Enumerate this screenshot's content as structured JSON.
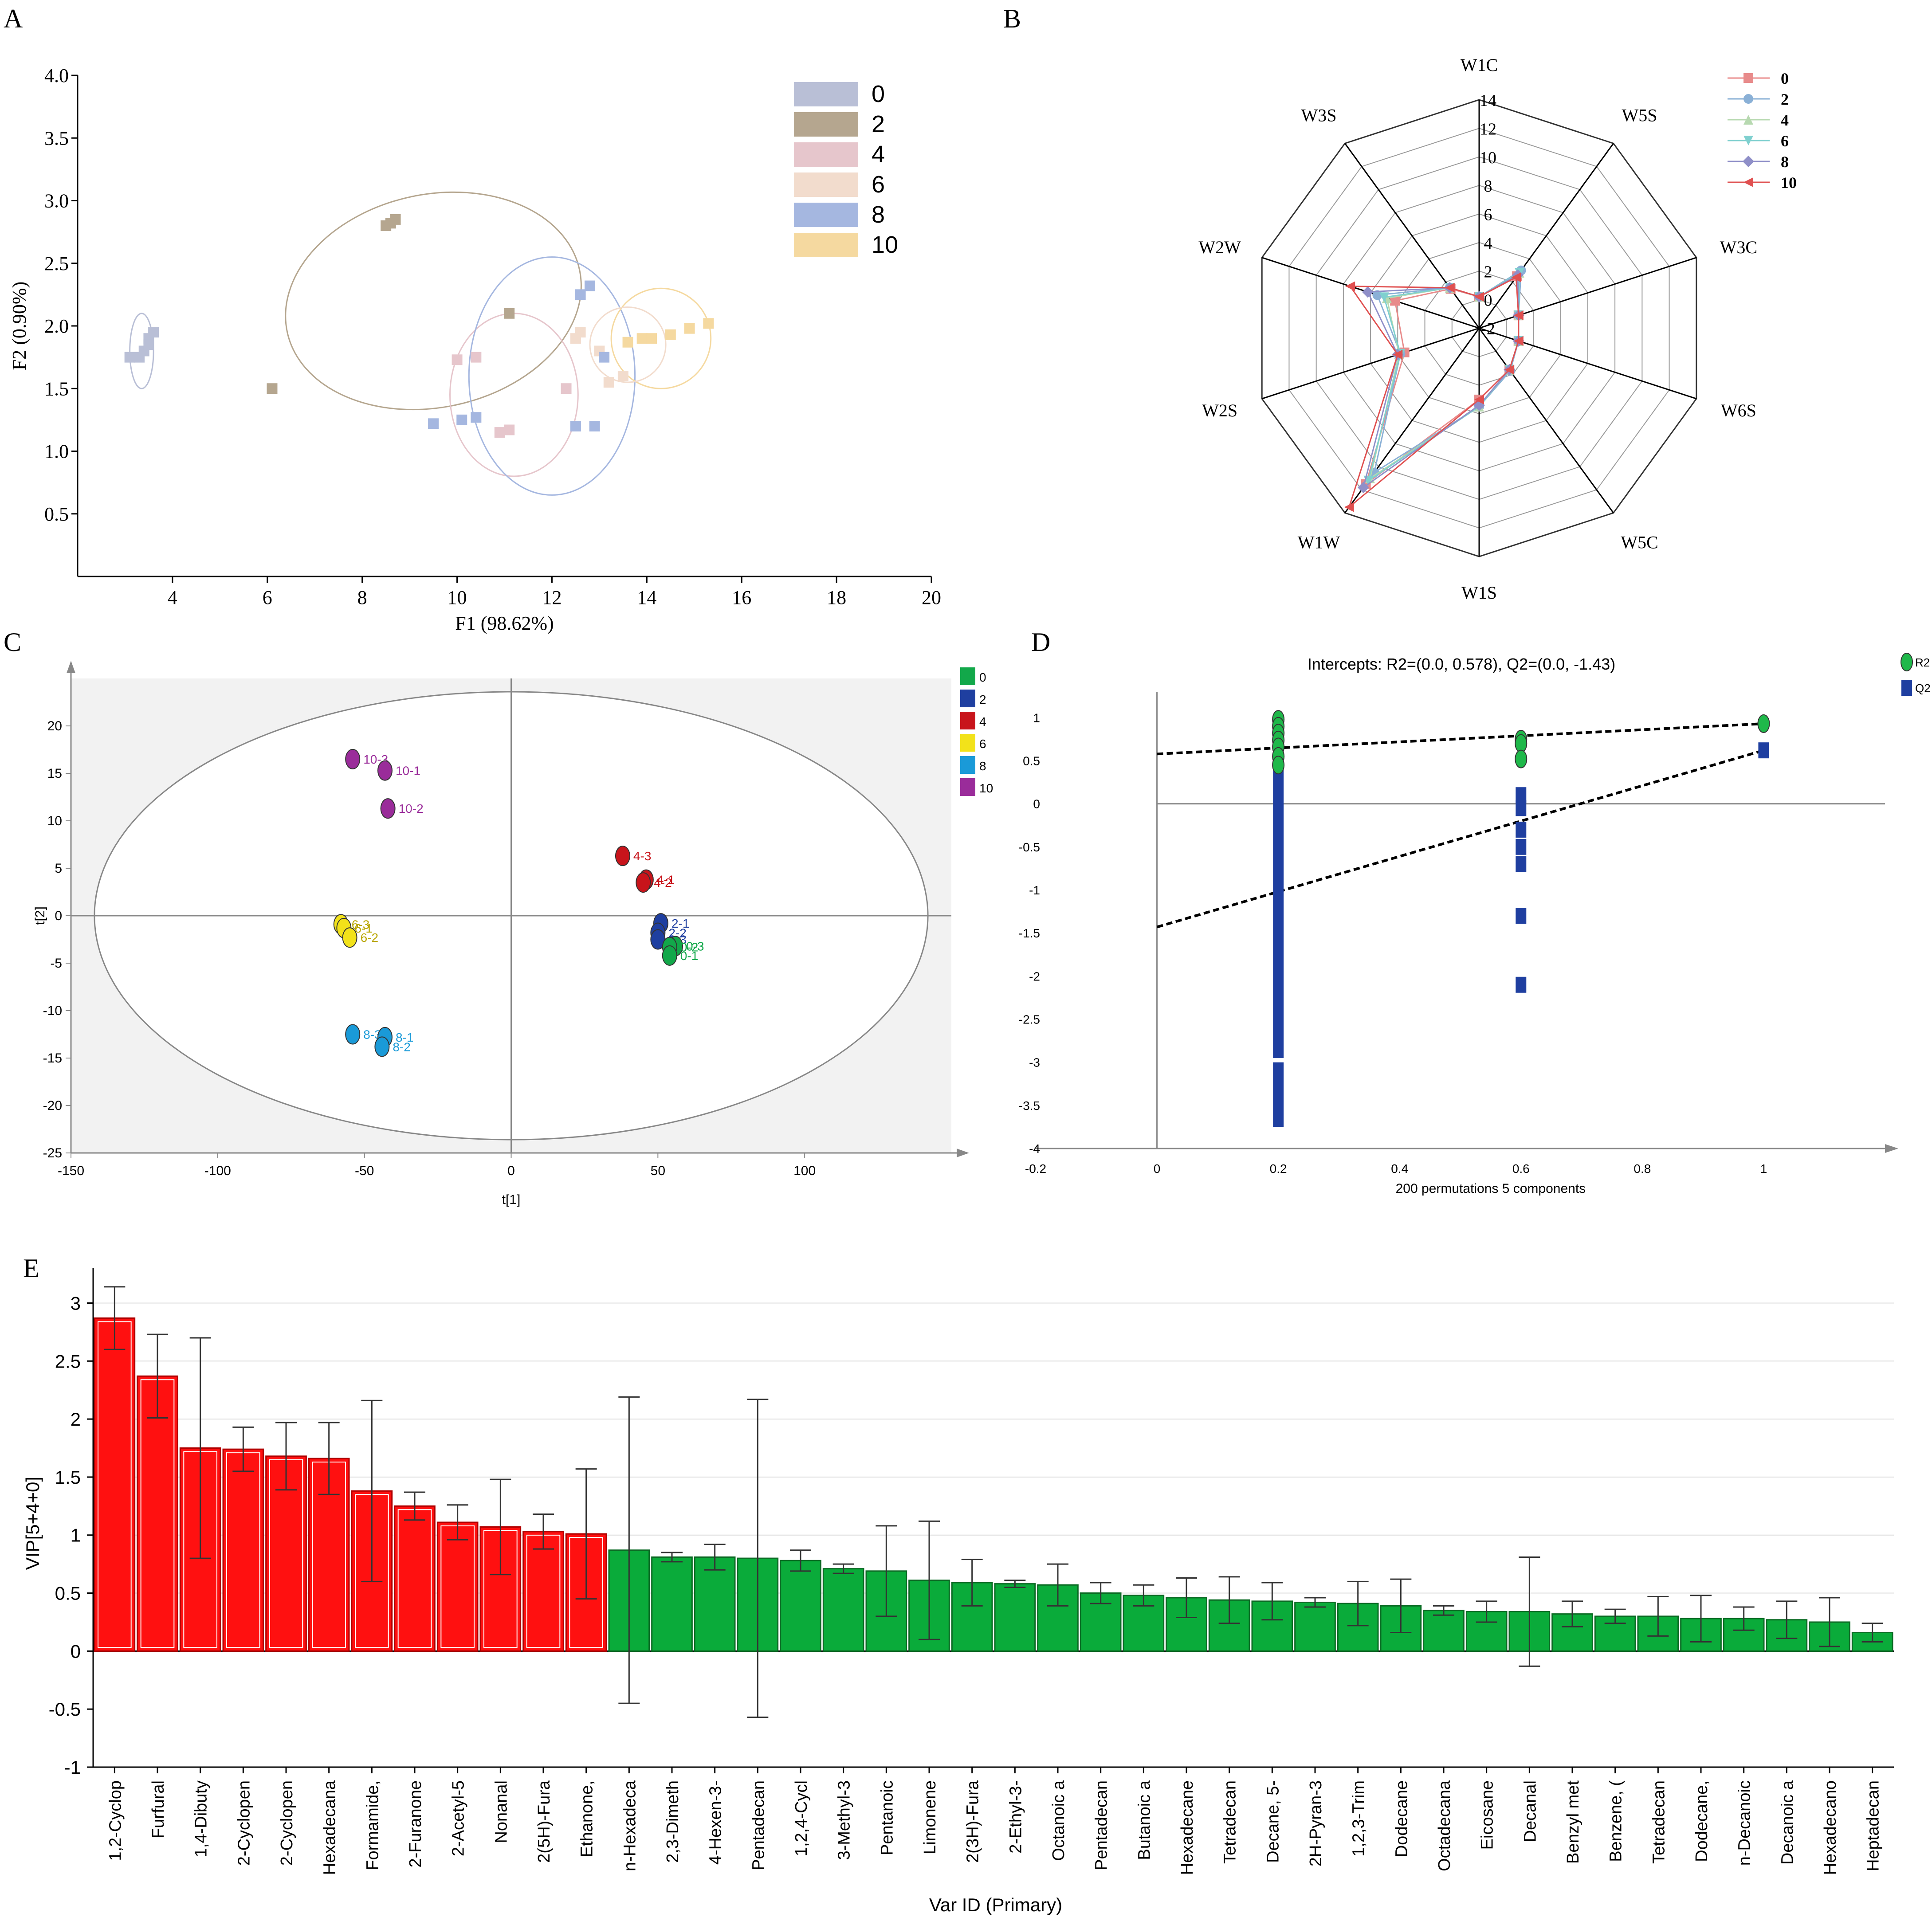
{
  "panel_letters": [
    "A",
    "B",
    "C",
    "D",
    "E"
  ],
  "colors": {
    "a_groups": [
      "#b9bfd6",
      "#b5a68f",
      "#e6c6cc",
      "#f2dccd",
      "#a5b7e0",
      "#f5d9a0"
    ],
    "b_series": [
      "#e88b8b",
      "#8ab0d6",
      "#b7d9b0",
      "#7fd0cf",
      "#8f8fc8",
      "#e05050"
    ],
    "c_groups": [
      "#12a84a",
      "#1f3fa0",
      "#c8141b",
      "#f2e21a",
      "#1a9ad8",
      "#9a2c9a"
    ],
    "d_r2": "#1fb84a",
    "d_q2": "#1f3fa0",
    "e_red": "#ff1010",
    "e_green": "#0aab3a"
  },
  "chart_data": [
    {
      "panel": "A",
      "type": "scatter",
      "xlabel": "F1 (98.62%)",
      "ylabel": "F2 (0.90%)",
      "xlim": [
        2,
        20
      ],
      "ylim": [
        0,
        4
      ],
      "xticks": [
        "4",
        "6",
        "8",
        "10",
        "12",
        "14",
        "16",
        "18",
        "20"
      ],
      "yticks": [
        "0.5",
        "1.0",
        "1.5",
        "2.0",
        "2.5",
        "3.0",
        "3.5",
        "4.0"
      ],
      "legend": [
        "0",
        "2",
        "4",
        "6",
        "8",
        "10"
      ],
      "legend_position": "top-right",
      "series": [
        {
          "name": "0",
          "points": [
            [
              3.3,
              1.75
            ],
            [
              3.4,
              1.8
            ],
            [
              3.5,
              1.9
            ],
            [
              3.6,
              1.95
            ],
            [
              3.5,
              1.85
            ],
            [
              3.1,
              1.75
            ]
          ]
        },
        {
          "name": "2",
          "points": [
            [
              8.5,
              2.8
            ],
            [
              8.7,
              2.85
            ],
            [
              8.6,
              2.82
            ],
            [
              11.1,
              2.1
            ],
            [
              6.1,
              1.5
            ]
          ]
        },
        {
          "name": "4",
          "points": [
            [
              10.0,
              1.73
            ],
            [
              10.4,
              1.75
            ],
            [
              10.9,
              1.15
            ],
            [
              11.1,
              1.17
            ],
            [
              12.3,
              1.5
            ]
          ]
        },
        {
          "name": "6",
          "points": [
            [
              12.6,
              1.95
            ],
            [
              12.5,
              1.9
            ],
            [
              13.0,
              1.8
            ],
            [
              13.2,
              1.55
            ],
            [
              13.5,
              1.6
            ]
          ]
        },
        {
          "name": "8",
          "points": [
            [
              9.5,
              1.22
            ],
            [
              10.1,
              1.25
            ],
            [
              10.4,
              1.27
            ],
            [
              12.5,
              1.2
            ],
            [
              12.9,
              1.2
            ],
            [
              12.6,
              2.25
            ],
            [
              12.8,
              2.32
            ],
            [
              13.1,
              1.75
            ]
          ]
        },
        {
          "name": "10",
          "points": [
            [
              13.6,
              1.87
            ],
            [
              13.9,
              1.9
            ],
            [
              14.1,
              1.9
            ],
            [
              14.5,
              1.93
            ],
            [
              14.9,
              1.98
            ],
            [
              15.3,
              2.02
            ]
          ]
        }
      ],
      "ellipses": [
        {
          "group": "0",
          "cx": 3.35,
          "cy": 1.8,
          "rx": 0.5,
          "ry": 0.3,
          "angle_deg": 0
        },
        {
          "group": "2",
          "cx": 9.5,
          "cy": 2.2,
          "rx": 6.3,
          "ry": 0.85,
          "angle_deg": 0
        },
        {
          "group": "4",
          "cx": 11.2,
          "cy": 1.45,
          "rx": 2.7,
          "ry": 0.65,
          "angle_deg": 0
        },
        {
          "group": "8",
          "cx": 12.0,
          "cy": 1.6,
          "rx": 3.5,
          "ry": 0.95,
          "angle_deg": 0
        },
        {
          "group": "10",
          "cx": 14.3,
          "cy": 1.9,
          "rx": 2.1,
          "ry": 0.4,
          "angle_deg": 0
        },
        {
          "group": "6",
          "cx": 13.6,
          "cy": 1.85,
          "rx": 1.6,
          "ry": 0.3,
          "angle_deg": 0
        }
      ]
    },
    {
      "panel": "B",
      "type": "radar",
      "axes": [
        "W1C",
        "W5S",
        "W3C",
        "W6S",
        "W5C",
        "W1S",
        "W1W",
        "W2S",
        "W2W",
        "W3S"
      ],
      "ring_labels": [
        "-2",
        "0",
        "2",
        "4",
        "6",
        "8",
        "10",
        "12",
        "14"
      ],
      "rlim": [
        -2,
        14
      ],
      "legend": [
        "0",
        "2",
        "4",
        "6",
        "8",
        "10"
      ],
      "legend_position": "top-right",
      "series": [
        {
          "name": "0",
          "marker": "square",
          "values": [
            0.2,
            2.5,
            0.9,
            0.9,
            1.6,
            3.0,
            11.5,
            3.5,
            4.2,
            1.4
          ]
        },
        {
          "name": "2",
          "marker": "circle",
          "values": [
            0.2,
            3.0,
            0.9,
            0.9,
            1.7,
            3.5,
            10.5,
            3.8,
            5.5,
            1.5
          ]
        },
        {
          "name": "4",
          "marker": "triangle-up",
          "values": [
            0.2,
            2.8,
            0.9,
            0.9,
            1.6,
            3.5,
            11.0,
            3.9,
            4.8,
            1.5
          ]
        },
        {
          "name": "6",
          "marker": "triangle-down",
          "values": [
            0.2,
            2.8,
            0.9,
            0.9,
            1.6,
            3.5,
            11.2,
            3.8,
            5.0,
            1.5
          ]
        },
        {
          "name": "8",
          "marker": "diamond",
          "values": [
            0.2,
            2.6,
            0.9,
            0.9,
            1.6,
            3.4,
            11.8,
            4.0,
            6.2,
            1.5
          ]
        },
        {
          "name": "10",
          "marker": "triangle-left",
          "values": [
            0.2,
            2.4,
            0.9,
            0.9,
            1.6,
            3.0,
            13.5,
            4.0,
            7.5,
            1.5
          ]
        }
      ]
    },
    {
      "panel": "C",
      "type": "scatter",
      "xlabel": "t[1]",
      "ylabel": "t[2]",
      "xlim": [
        -150,
        150
      ],
      "ylim": [
        -25,
        25
      ],
      "xticks": [
        -150,
        -100,
        -50,
        0,
        50,
        100
      ],
      "yticks": [
        -25,
        -20,
        -15,
        -10,
        -5,
        0,
        5,
        10,
        15,
        20
      ],
      "legend": [
        "0",
        "2",
        "4",
        "6",
        "8",
        "10"
      ],
      "legend_position": "right",
      "ellipse": {
        "cx": 0,
        "cy": 0,
        "rx": 142,
        "ry": 23.6
      },
      "points": [
        {
          "group": "10",
          "label": "10-3",
          "x": -54,
          "y": 16.5
        },
        {
          "group": "10",
          "label": "10-1",
          "x": -43,
          "y": 15.3
        },
        {
          "group": "10",
          "label": "10-2",
          "x": -42,
          "y": 11.3
        },
        {
          "group": "4",
          "label": "4-3",
          "x": 38,
          "y": 6.3
        },
        {
          "group": "4",
          "label": "4-1",
          "x": 46,
          "y": 3.8
        },
        {
          "group": "4",
          "label": "4-2",
          "x": 45,
          "y": 3.5
        },
        {
          "group": "2",
          "label": "2-1",
          "x": 51,
          "y": -0.8
        },
        {
          "group": "2",
          "label": "2-2",
          "x": 50,
          "y": -1.8
        },
        {
          "group": "2",
          "label": "2-3",
          "x": 50,
          "y": -2.5
        },
        {
          "group": "0",
          "label": "0-3",
          "x": 56,
          "y": -3.2
        },
        {
          "group": "0",
          "label": "0-2",
          "x": 54,
          "y": -3.3
        },
        {
          "group": "0",
          "label": "0-1",
          "x": 54,
          "y": -4.2
        },
        {
          "group": "6",
          "label": "6-3",
          "x": -58,
          "y": -0.9
        },
        {
          "group": "6",
          "label": "6-1",
          "x": -57,
          "y": -1.3
        },
        {
          "group": "6",
          "label": "6-2",
          "x": -55,
          "y": -2.3
        },
        {
          "group": "8",
          "label": "8-3",
          "x": -54,
          "y": -12.5
        },
        {
          "group": "8",
          "label": "8-1",
          "x": -43,
          "y": -12.8
        },
        {
          "group": "8",
          "label": "8-2",
          "x": -44,
          "y": -13.8
        }
      ]
    },
    {
      "panel": "D",
      "type": "scatter",
      "title": "Intercepts: R2=(0.0, 0.578), Q2=(0.0, -1.43)",
      "xlabel": "200 permutations 5 components",
      "xlim": [
        -0.2,
        1.2
      ],
      "ylim": [
        -4,
        1.3
      ],
      "xticks": [
        "-0.2",
        "0",
        "0.2",
        "0.4",
        "0.6",
        "0.8",
        "1"
      ],
      "yticks": [
        "-4",
        "-3.5",
        "-3",
        "-2.5",
        "-2",
        "-1.5",
        "-1",
        "-0.5",
        "0",
        "0.5",
        "1"
      ],
      "legend": [
        "R2",
        "Q2"
      ],
      "legend_position": "top-right",
      "series": [
        {
          "name": "R2",
          "x": [
            0.2,
            0.2,
            0.2,
            0.2,
            0.2,
            0.2,
            0.2,
            0.6,
            0.6,
            0.6,
            1
          ],
          "y": [
            0.98,
            0.9,
            0.82,
            0.74,
            0.66,
            0.55,
            0.45,
            0.75,
            0.7,
            0.52,
            0.93
          ]
        },
        {
          "name": "Q2",
          "x": [
            0.6,
            0.6,
            0.6,
            0.6,
            0.6,
            0.6,
            0.6,
            1
          ],
          "y": [
            0.1,
            -0.05,
            -0.3,
            -0.5,
            -0.7,
            -1.3,
            -2.1,
            0.62
          ]
        }
      ],
      "q2_bar_at_0_2": {
        "top": 0.75,
        "bottom": -3.75,
        "gap": [
          -2.95,
          -3.0
        ]
      },
      "fit_lines": [
        {
          "name": "R2",
          "x": [
            0,
            1
          ],
          "y": [
            0.578,
            0.93
          ]
        },
        {
          "name": "Q2",
          "x": [
            0,
            1
          ],
          "y": [
            -1.43,
            0.62
          ]
        }
      ]
    },
    {
      "panel": "E",
      "type": "bar",
      "xlabel": "Var ID (Primary)",
      "ylabel": "VIP[5+4+0]",
      "ylim": [
        -1,
        3.3
      ],
      "yticks": [
        "-1",
        "-0.5",
        "0",
        "0.5",
        "1",
        "1.5",
        "2",
        "2.5",
        "3"
      ],
      "categories": [
        "1,2-Cyclop",
        "Furfural",
        "1,4-Dibuty",
        "2-Cyclopen",
        "2-Cyclopen",
        "Hexadecana",
        "Formamide,",
        "2-Furanone",
        "2-Acetyl-5",
        "Nonanal",
        "2(5H)-Fura",
        "Ethanone,",
        "n-Hexadeca",
        "2,3-Dimeth",
        "4-Hexen-3-",
        "Pentadecan",
        "1,2,4-Cycl",
        "3-Methyl-3",
        "Pentanoic",
        "Limonene",
        "2(3H)-Fura",
        "2-Ethyl-3-",
        "Octanoic a",
        "Pentadecan",
        "Butanoic a",
        "Hexadecane",
        "Tetradecan",
        "Decane, 5-",
        "2H-Pyran-3",
        "1,2,3-Trim",
        "Dodecane",
        "Octadecana",
        "Eicosane",
        "Decanal",
        "Benzyl met",
        "Benzene, (",
        "Tetradecan",
        "Dodecane,",
        "n-Decanoic",
        "Decanoic a",
        "Hexadecano",
        "Heptadecan"
      ],
      "values": [
        2.87,
        2.37,
        1.75,
        1.74,
        1.68,
        1.66,
        1.38,
        1.25,
        1.11,
        1.07,
        1.03,
        1.01,
        0.87,
        0.81,
        0.81,
        0.8,
        0.78,
        0.71,
        0.69,
        0.61,
        0.59,
        0.58,
        0.57,
        0.5,
        0.48,
        0.46,
        0.44,
        0.43,
        0.42,
        0.41,
        0.39,
        0.35,
        0.34,
        0.34,
        0.32,
        0.3,
        0.3,
        0.28,
        0.28,
        0.27,
        0.25,
        0.16
      ],
      "errors": [
        0.27,
        0.36,
        0.95,
        0.19,
        0.29,
        0.31,
        0.78,
        0.12,
        0.15,
        0.41,
        0.15,
        0.56,
        1.32,
        0.04,
        0.11,
        1.37,
        0.09,
        0.04,
        0.39,
        0.51,
        0.2,
        0.03,
        0.18,
        0.09,
        0.09,
        0.17,
        0.2,
        0.16,
        0.04,
        0.19,
        0.23,
        0.04,
        0.09,
        0.47,
        0.11,
        0.06,
        0.17,
        0.2,
        0.1,
        0.16,
        0.21,
        0.08
      ],
      "highlight_count": 12
    }
  ]
}
